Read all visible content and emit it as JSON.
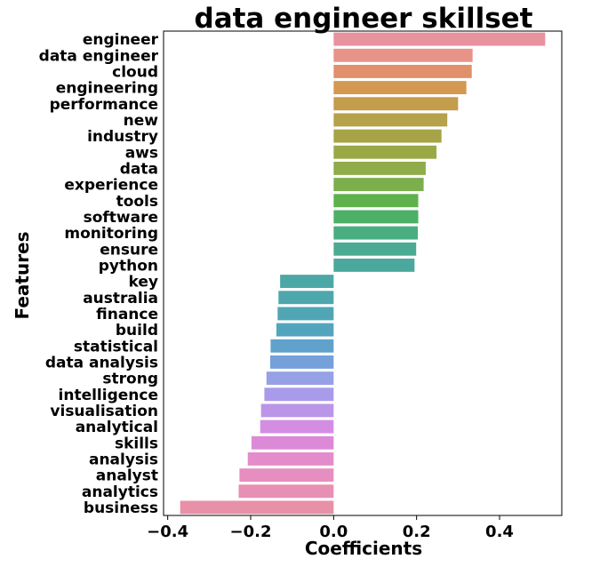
{
  "chart_data": {
    "type": "bar",
    "orientation": "horizontal",
    "title": "data engineer skillset",
    "xlabel": "Coefficients",
    "ylabel": "Features",
    "xlim": [
      -0.41,
      0.55
    ],
    "xticks": [
      -0.4,
      -0.2,
      0.0,
      0.2,
      0.4
    ],
    "xtick_labels": [
      "−0.4",
      "−0.2",
      "0.0",
      "0.2",
      "0.4"
    ],
    "grid": false,
    "categories": [
      "engineer",
      "data engineer",
      "cloud",
      "engineering",
      "performance",
      "new",
      "industry",
      "aws",
      "data",
      "experience",
      "tools",
      "software",
      "monitoring",
      "ensure",
      "python",
      "key",
      "australia",
      "finance",
      "build",
      "statistical",
      "data analysis",
      "strong",
      "intelligence",
      "visualisation",
      "analytical",
      "skills",
      "analysis",
      "analyst",
      "analytics",
      "business"
    ],
    "values": [
      0.51,
      0.335,
      0.333,
      0.32,
      0.3,
      0.274,
      0.26,
      0.248,
      0.222,
      0.217,
      0.204,
      0.204,
      0.203,
      0.199,
      0.195,
      -0.129,
      -0.133,
      -0.135,
      -0.138,
      -0.152,
      -0.153,
      -0.162,
      -0.167,
      -0.175,
      -0.177,
      -0.198,
      -0.207,
      -0.227,
      -0.229,
      -0.37
    ],
    "colors": [
      "#e8929d",
      "#e89388",
      "#e0906a",
      "#d39851",
      "#c39c4c",
      "#b5a24a",
      "#a7a448",
      "#9ba846",
      "#8fab4a",
      "#7aaf4c",
      "#5fb14c",
      "#4cb167",
      "#4aae83",
      "#4bab92",
      "#4aa99c",
      "#4ca8a6",
      "#4da7ad",
      "#50a6b4",
      "#52a5bd",
      "#60a2cc",
      "#75a0d9",
      "#96a1e6",
      "#a99be9",
      "#bb95e7",
      "#d38ee3",
      "#dc89d7",
      "#e48ccb",
      "#e78ec0",
      "#e88fb4",
      "#e890a8"
    ]
  }
}
